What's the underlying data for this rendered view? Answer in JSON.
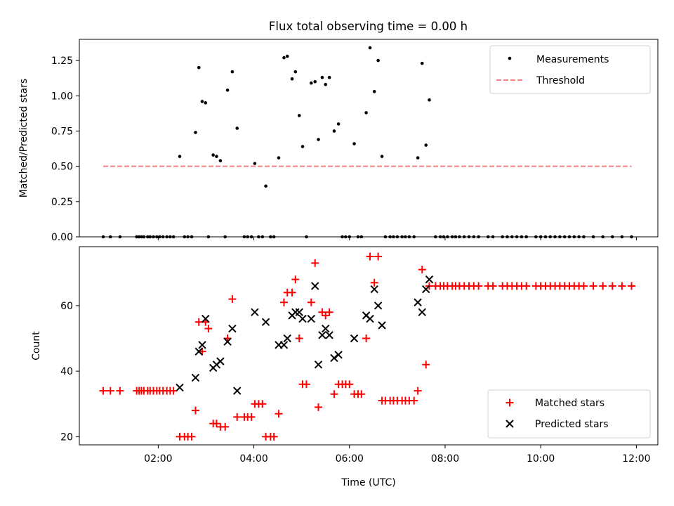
{
  "title": "Flux total observing time = 0.00 h",
  "chart_data": [
    {
      "type": "scatter",
      "panel": "top",
      "title": "Flux total observing time = 0.00 h",
      "xlabel": "",
      "ylabel": "Matched/Predicted stars",
      "xlim": [
        0.35,
        12.45
      ],
      "ylim": [
        0,
        1.4
      ],
      "yticks": [
        "0.00",
        "0.25",
        "0.50",
        "0.75",
        "1.00",
        "1.25"
      ],
      "grid": false,
      "legend_position": "upper right",
      "legend": [
        "Measurements",
        "Threshold"
      ],
      "series": [
        {
          "name": "Measurements",
          "marker": "dot",
          "color": "#000000",
          "points": [
            [
              0.85,
              0
            ],
            [
              1.0,
              0
            ],
            [
              1.2,
              0
            ],
            [
              1.55,
              0
            ],
            [
              1.6,
              0
            ],
            [
              1.65,
              0
            ],
            [
              1.7,
              0
            ],
            [
              1.78,
              0
            ],
            [
              1.83,
              0
            ],
            [
              1.9,
              0
            ],
            [
              1.97,
              0
            ],
            [
              2.03,
              0
            ],
            [
              2.1,
              0
            ],
            [
              2.18,
              0
            ],
            [
              2.25,
              0
            ],
            [
              2.32,
              0
            ],
            [
              2.45,
              0.57
            ],
            [
              2.55,
              0
            ],
            [
              2.62,
              0
            ],
            [
              2.7,
              0
            ],
            [
              2.78,
              0.74
            ],
            [
              2.85,
              1.2
            ],
            [
              2.92,
              0.96
            ],
            [
              2.99,
              0.95
            ],
            [
              3.05,
              0
            ],
            [
              3.15,
              0.58
            ],
            [
              3.22,
              0.57
            ],
            [
              3.3,
              0.54
            ],
            [
              3.4,
              0
            ],
            [
              3.45,
              1.04
            ],
            [
              3.55,
              1.17
            ],
            [
              3.65,
              0.77
            ],
            [
              3.8,
              0
            ],
            [
              3.87,
              0
            ],
            [
              3.95,
              0
            ],
            [
              4.02,
              0.52
            ],
            [
              4.1,
              0
            ],
            [
              4.18,
              0
            ],
            [
              4.25,
              0.36
            ],
            [
              4.35,
              0
            ],
            [
              4.42,
              0
            ],
            [
              4.52,
              0.56
            ],
            [
              4.63,
              1.27
            ],
            [
              4.7,
              1.28
            ],
            [
              4.8,
              1.12
            ],
            [
              4.87,
              1.17
            ],
            [
              4.95,
              0.86
            ],
            [
              5.02,
              0.64
            ],
            [
              5.1,
              0
            ],
            [
              5.2,
              1.09
            ],
            [
              5.28,
              1.1
            ],
            [
              5.35,
              0.69
            ],
            [
              5.43,
              1.13
            ],
            [
              5.5,
              1.08
            ],
            [
              5.58,
              1.13
            ],
            [
              5.68,
              0.75
            ],
            [
              5.77,
              0.8
            ],
            [
              5.85,
              0
            ],
            [
              5.92,
              0
            ],
            [
              6.0,
              0
            ],
            [
              6.1,
              0.66
            ],
            [
              6.18,
              0
            ],
            [
              6.25,
              0
            ],
            [
              6.35,
              0.88
            ],
            [
              6.43,
              1.34
            ],
            [
              6.52,
              1.03
            ],
            [
              6.6,
              1.25
            ],
            [
              6.68,
              0.57
            ],
            [
              6.75,
              0
            ],
            [
              6.85,
              0
            ],
            [
              6.92,
              0
            ],
            [
              7.0,
              0
            ],
            [
              7.1,
              0
            ],
            [
              7.17,
              0
            ],
            [
              7.25,
              0
            ],
            [
              7.35,
              0
            ],
            [
              7.43,
              0.56
            ],
            [
              7.52,
              1.23
            ],
            [
              7.6,
              0.65
            ],
            [
              7.67,
              0.97
            ],
            [
              7.8,
              0
            ],
            [
              7.9,
              0
            ],
            [
              7.97,
              0
            ],
            [
              8.05,
              0
            ],
            [
              8.15,
              0
            ],
            [
              8.22,
              0
            ],
            [
              8.3,
              0
            ],
            [
              8.4,
              0
            ],
            [
              8.5,
              0
            ],
            [
              8.6,
              0
            ],
            [
              8.7,
              0
            ],
            [
              8.9,
              0
            ],
            [
              9.0,
              0
            ],
            [
              9.2,
              0
            ],
            [
              9.3,
              0
            ],
            [
              9.4,
              0
            ],
            [
              9.5,
              0
            ],
            [
              9.6,
              0
            ],
            [
              9.7,
              0
            ],
            [
              9.9,
              0
            ],
            [
              10.0,
              0
            ],
            [
              10.1,
              0
            ],
            [
              10.2,
              0
            ],
            [
              10.3,
              0
            ],
            [
              10.4,
              0
            ],
            [
              10.5,
              0
            ],
            [
              10.6,
              0
            ],
            [
              10.7,
              0
            ],
            [
              10.8,
              0
            ],
            [
              10.9,
              0
            ],
            [
              11.1,
              0
            ],
            [
              11.3,
              0
            ],
            [
              11.5,
              0
            ],
            [
              11.7,
              0
            ],
            [
              11.9,
              0
            ]
          ]
        },
        {
          "name": "Threshold",
          "style": "dashed",
          "color": "#ff7f7f",
          "points": [
            [
              0.85,
              0.5
            ],
            [
              11.9,
              0.5
            ]
          ]
        }
      ]
    },
    {
      "type": "scatter",
      "panel": "bottom",
      "title": "",
      "xlabel": "Time (UTC)",
      "ylabel": "Count",
      "xlim": [
        0.35,
        12.45
      ],
      "ylim": [
        17.5,
        78
      ],
      "xticks": [
        [
          2,
          "02:00"
        ],
        [
          4,
          "04:00"
        ],
        [
          6,
          "06:00"
        ],
        [
          8,
          "08:00"
        ],
        [
          10,
          "10:00"
        ],
        [
          12,
          "12:00"
        ]
      ],
      "yticks": [
        "20",
        "40",
        "60"
      ],
      "grid": false,
      "legend_position": "lower right",
      "legend": [
        "Matched stars",
        "Predicted stars"
      ],
      "series": [
        {
          "name": "Matched stars",
          "marker": "plus",
          "color": "#ff0000",
          "points": [
            [
              0.85,
              34
            ],
            [
              1.0,
              34
            ],
            [
              1.2,
              34
            ],
            [
              1.55,
              34
            ],
            [
              1.6,
              34
            ],
            [
              1.65,
              34
            ],
            [
              1.7,
              34
            ],
            [
              1.78,
              34
            ],
            [
              1.83,
              34
            ],
            [
              1.9,
              34
            ],
            [
              1.97,
              34
            ],
            [
              2.03,
              34
            ],
            [
              2.1,
              34
            ],
            [
              2.18,
              34
            ],
            [
              2.25,
              34
            ],
            [
              2.32,
              34
            ],
            [
              2.45,
              20
            ],
            [
              2.55,
              20
            ],
            [
              2.62,
              20
            ],
            [
              2.7,
              20
            ],
            [
              2.78,
              28
            ],
            [
              2.85,
              55
            ],
            [
              2.92,
              46
            ],
            [
              2.99,
              55
            ],
            [
              3.05,
              53
            ],
            [
              3.15,
              24
            ],
            [
              3.22,
              24
            ],
            [
              3.3,
              23
            ],
            [
              3.4,
              23
            ],
            [
              3.45,
              50
            ],
            [
              3.55,
              62
            ],
            [
              3.65,
              26
            ],
            [
              3.8,
              26
            ],
            [
              3.87,
              26
            ],
            [
              3.95,
              26
            ],
            [
              4.02,
              30
            ],
            [
              4.1,
              30
            ],
            [
              4.18,
              30
            ],
            [
              4.25,
              20
            ],
            [
              4.35,
              20
            ],
            [
              4.42,
              20
            ],
            [
              4.52,
              27
            ],
            [
              4.63,
              61
            ],
            [
              4.7,
              64
            ],
            [
              4.8,
              64
            ],
            [
              4.87,
              68
            ],
            [
              4.95,
              50
            ],
            [
              5.02,
              36
            ],
            [
              5.1,
              36
            ],
            [
              5.2,
              61
            ],
            [
              5.28,
              73
            ],
            [
              5.35,
              29
            ],
            [
              5.43,
              58
            ],
            [
              5.5,
              57
            ],
            [
              5.58,
              58
            ],
            [
              5.68,
              33
            ],
            [
              5.77,
              36
            ],
            [
              5.85,
              36
            ],
            [
              5.92,
              36
            ],
            [
              6.0,
              36
            ],
            [
              6.1,
              33
            ],
            [
              6.18,
              33
            ],
            [
              6.25,
              33
            ],
            [
              6.35,
              50
            ],
            [
              6.43,
              75
            ],
            [
              6.52,
              67
            ],
            [
              6.6,
              75
            ],
            [
              6.68,
              31
            ],
            [
              6.75,
              31
            ],
            [
              6.85,
              31
            ],
            [
              6.92,
              31
            ],
            [
              7.0,
              31
            ],
            [
              7.1,
              31
            ],
            [
              7.17,
              31
            ],
            [
              7.25,
              31
            ],
            [
              7.35,
              31
            ],
            [
              7.43,
              34
            ],
            [
              7.52,
              71
            ],
            [
              7.6,
              42
            ],
            [
              7.67,
              66
            ],
            [
              7.8,
              66
            ],
            [
              7.9,
              66
            ],
            [
              7.97,
              66
            ],
            [
              8.05,
              66
            ],
            [
              8.15,
              66
            ],
            [
              8.22,
              66
            ],
            [
              8.3,
              66
            ],
            [
              8.4,
              66
            ],
            [
              8.5,
              66
            ],
            [
              8.6,
              66
            ],
            [
              8.7,
              66
            ],
            [
              8.9,
              66
            ],
            [
              9.0,
              66
            ],
            [
              9.2,
              66
            ],
            [
              9.3,
              66
            ],
            [
              9.4,
              66
            ],
            [
              9.5,
              66
            ],
            [
              9.6,
              66
            ],
            [
              9.7,
              66
            ],
            [
              9.9,
              66
            ],
            [
              10.0,
              66
            ],
            [
              10.1,
              66
            ],
            [
              10.2,
              66
            ],
            [
              10.3,
              66
            ],
            [
              10.4,
              66
            ],
            [
              10.5,
              66
            ],
            [
              10.6,
              66
            ],
            [
              10.7,
              66
            ],
            [
              10.8,
              66
            ],
            [
              10.9,
              66
            ],
            [
              11.1,
              66
            ],
            [
              11.3,
              66
            ],
            [
              11.5,
              66
            ],
            [
              11.7,
              66
            ],
            [
              11.9,
              66
            ]
          ]
        },
        {
          "name": "Predicted stars",
          "marker": "x",
          "color": "#000000",
          "points": [
            [
              2.45,
              35
            ],
            [
              2.78,
              38
            ],
            [
              2.85,
              46
            ],
            [
              2.92,
              48
            ],
            [
              2.99,
              56
            ],
            [
              3.15,
              41
            ],
            [
              3.22,
              42
            ],
            [
              3.3,
              43
            ],
            [
              3.45,
              49
            ],
            [
              3.55,
              53
            ],
            [
              3.65,
              34
            ],
            [
              4.02,
              58
            ],
            [
              4.25,
              55
            ],
            [
              4.52,
              48
            ],
            [
              4.63,
              48
            ],
            [
              4.7,
              50
            ],
            [
              4.8,
              57
            ],
            [
              4.87,
              58
            ],
            [
              4.95,
              58
            ],
            [
              5.02,
              56
            ],
            [
              5.2,
              56
            ],
            [
              5.28,
              66
            ],
            [
              5.35,
              42
            ],
            [
              5.43,
              51
            ],
            [
              5.5,
              53
            ],
            [
              5.58,
              51
            ],
            [
              5.68,
              44
            ],
            [
              5.77,
              45
            ],
            [
              6.1,
              50
            ],
            [
              6.35,
              57
            ],
            [
              6.43,
              56
            ],
            [
              6.52,
              65
            ],
            [
              6.6,
              60
            ],
            [
              6.68,
              54
            ],
            [
              7.43,
              61
            ],
            [
              7.52,
              58
            ],
            [
              7.6,
              65
            ],
            [
              7.67,
              68
            ]
          ]
        }
      ]
    }
  ]
}
